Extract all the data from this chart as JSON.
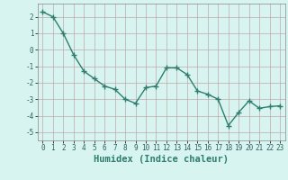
{
  "x": [
    0,
    1,
    2,
    3,
    4,
    5,
    6,
    7,
    8,
    9,
    10,
    11,
    12,
    13,
    14,
    15,
    16,
    17,
    18,
    19,
    20,
    21,
    22,
    23
  ],
  "y": [
    2.3,
    2.0,
    1.0,
    -0.3,
    -1.3,
    -1.75,
    -2.2,
    -2.4,
    -3.0,
    -3.25,
    -2.3,
    -2.2,
    -1.1,
    -1.1,
    -1.5,
    -2.5,
    -2.7,
    -3.0,
    -4.6,
    -3.8,
    -3.1,
    -3.55,
    -3.45,
    -3.4
  ],
  "line_color": "#2e7d6e",
  "marker": "+",
  "bg_color": "#d8f4f0",
  "grid_color": "#c0a8a8",
  "xlabel": "Humidex (Indice chaleur)",
  "ylim": [
    -5.5,
    2.8
  ],
  "xlim": [
    -0.5,
    23.5
  ],
  "yticks": [
    -5,
    -4,
    -3,
    -2,
    -1,
    0,
    1,
    2
  ],
  "xticks": [
    0,
    1,
    2,
    3,
    4,
    5,
    6,
    7,
    8,
    9,
    10,
    11,
    12,
    13,
    14,
    15,
    16,
    17,
    18,
    19,
    20,
    21,
    22,
    23
  ],
  "tick_fontsize": 5.5,
  "xlabel_fontsize": 7.5,
  "linewidth": 1.0,
  "markersize": 4.0,
  "markeredgewidth": 1.0
}
